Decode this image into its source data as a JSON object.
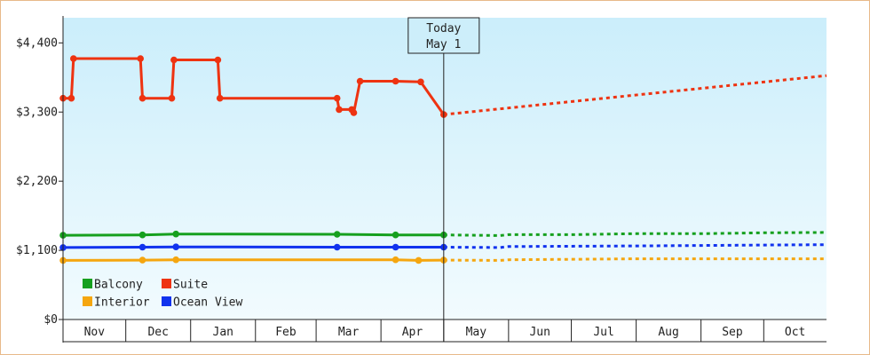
{
  "chart_data": {
    "type": "line",
    "title": "",
    "xlabel": "",
    "ylabel": "",
    "ylim": [
      0,
      4800
    ],
    "y_ticks": [
      {
        "value": 0,
        "label": "$0"
      },
      {
        "value": 1100,
        "label": "$1,100"
      },
      {
        "value": 2200,
        "label": "$2,200"
      },
      {
        "value": 3300,
        "label": "$3,300"
      },
      {
        "value": 4400,
        "label": "$4,400"
      }
    ],
    "months": [
      "Nov",
      "Dec",
      "Jan",
      "Feb",
      "Mar",
      "Apr",
      "May",
      "Jun",
      "Jul",
      "Aug",
      "Sep",
      "Oct"
    ],
    "xlim": [
      "2023-11-01",
      "2024-10-31"
    ],
    "today": {
      "line1": "Today",
      "line2": "May 1",
      "date": "2024-05-01"
    },
    "grid": false,
    "legend_position": "bottom-left",
    "series": [
      {
        "name": "Balcony",
        "color": "#16a01e",
        "history": [
          [
            "2023-11-01",
            1340
          ],
          [
            "2023-12-09",
            1345
          ],
          [
            "2023-12-25",
            1360
          ],
          [
            "2024-03-11",
            1355
          ],
          [
            "2024-04-08",
            1345
          ],
          [
            "2024-05-01",
            1345
          ]
        ],
        "forecast": [
          [
            "2024-05-01",
            1345
          ],
          [
            "2024-05-28",
            1335
          ],
          [
            "2024-06-01",
            1350
          ],
          [
            "2024-07-01",
            1350
          ],
          [
            "2024-08-01",
            1365
          ],
          [
            "2024-09-01",
            1365
          ],
          [
            "2024-10-01",
            1380
          ],
          [
            "2024-10-31",
            1385
          ]
        ]
      },
      {
        "name": "Suite",
        "color": "#ee3311",
        "history": [
          [
            "2023-11-01",
            3520
          ],
          [
            "2023-11-05",
            3520
          ],
          [
            "2023-11-06",
            4150
          ],
          [
            "2023-12-08",
            4150
          ],
          [
            "2023-12-09",
            3520
          ],
          [
            "2023-12-23",
            3520
          ],
          [
            "2023-12-24",
            4130
          ],
          [
            "2024-01-14",
            4130
          ],
          [
            "2024-01-15",
            3520
          ],
          [
            "2024-03-11",
            3520
          ],
          [
            "2024-03-12",
            3340
          ],
          [
            "2024-03-18",
            3340
          ],
          [
            "2024-03-19",
            3290
          ],
          [
            "2024-03-22",
            3790
          ],
          [
            "2024-04-08",
            3790
          ],
          [
            "2024-04-20",
            3780
          ],
          [
            "2024-05-01",
            3260
          ]
        ],
        "forecast": [
          [
            "2024-05-01",
            3260
          ],
          [
            "2024-10-31",
            3880
          ]
        ]
      },
      {
        "name": "Interior",
        "color": "#f5a60f",
        "history": [
          [
            "2023-11-01",
            940
          ],
          [
            "2023-12-09",
            945
          ],
          [
            "2023-12-25",
            950
          ],
          [
            "2024-04-08",
            950
          ],
          [
            "2024-04-19",
            940
          ],
          [
            "2024-05-01",
            945
          ]
        ],
        "forecast": [
          [
            "2024-05-01",
            945
          ],
          [
            "2024-05-28",
            940
          ],
          [
            "2024-06-01",
            950
          ],
          [
            "2024-08-01",
            965
          ],
          [
            "2024-10-31",
            965
          ]
        ]
      },
      {
        "name": "Ocean View",
        "color": "#1133ee",
        "history": [
          [
            "2023-11-01",
            1145
          ],
          [
            "2023-12-09",
            1150
          ],
          [
            "2023-12-25",
            1155
          ],
          [
            "2024-03-11",
            1150
          ],
          [
            "2024-04-08",
            1150
          ],
          [
            "2024-05-01",
            1150
          ]
        ],
        "forecast": [
          [
            "2024-05-01",
            1150
          ],
          [
            "2024-05-28",
            1145
          ],
          [
            "2024-06-01",
            1160
          ],
          [
            "2024-08-01",
            1170
          ],
          [
            "2024-10-01",
            1185
          ],
          [
            "2024-10-31",
            1190
          ]
        ]
      }
    ]
  },
  "colors": {
    "plot_bg_top": "#cbeefb",
    "plot_bg_bottom": "#f2fbfe",
    "border": "#e8b98a"
  }
}
